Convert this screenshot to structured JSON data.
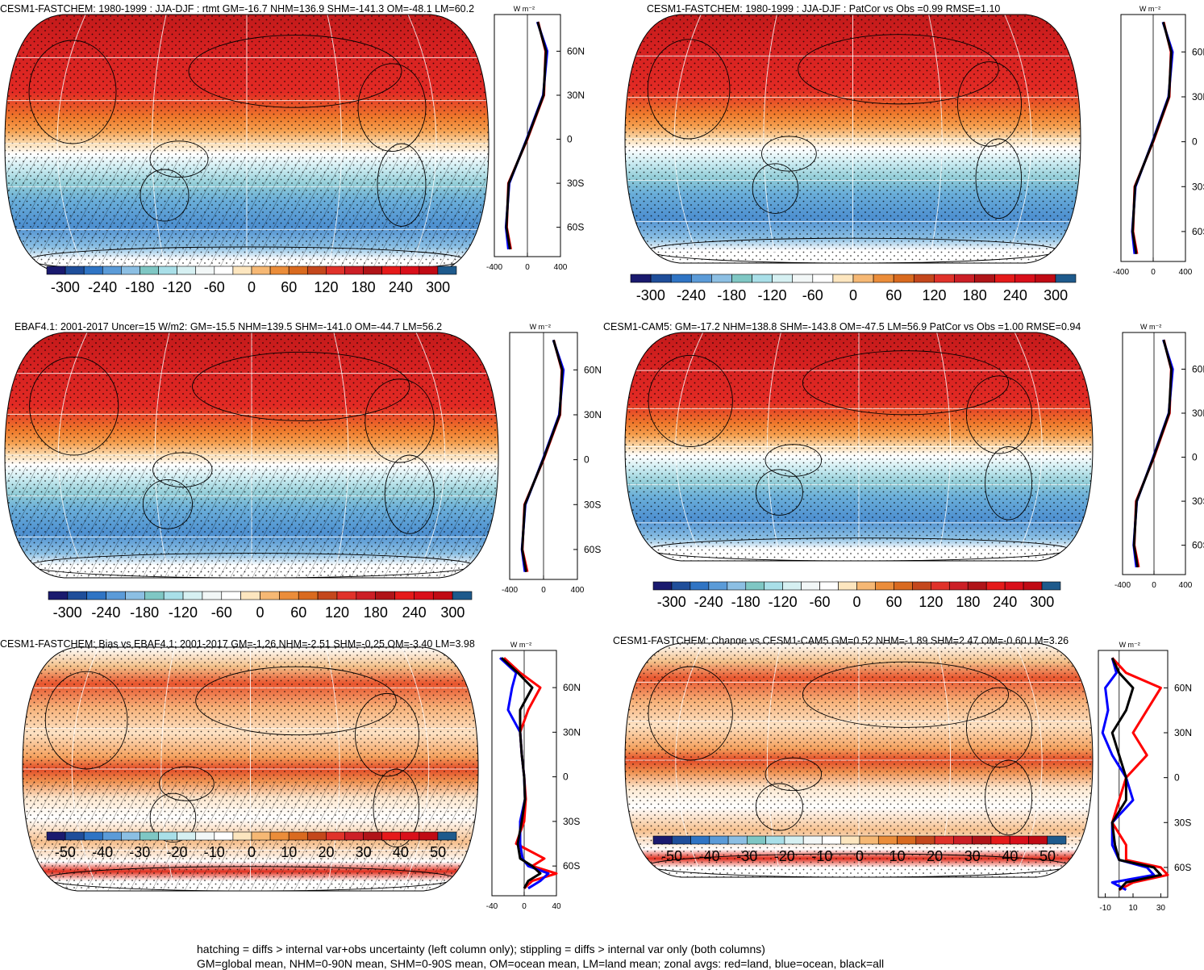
{
  "footnotes": [
    "hatching = diffs > internal var+obs uncertainty (left column only); stippling = diffs > internal var only (both columns)",
    "GM=global mean, NHM=0-90N mean, SHM=0-90S mean, OM=ocean mean, LM=land mean; zonal avgs: red=land, blue=ocean, black=all"
  ],
  "zonal_unit": "W m⁻²",
  "lat_ticks": [
    "60N",
    "30N",
    "0",
    "30S",
    "60S"
  ],
  "colors": {
    "land": "#ff0000",
    "ocean": "#0000ff",
    "all": "#000000",
    "abs_scale": [
      "#1a1a6e",
      "#1f4e9a",
      "#2f74c4",
      "#5b9bd8",
      "#8cbfe3",
      "#7fc7c4",
      "#a9dfe8",
      "#d6f0f2",
      "#f2f7f7",
      "#ffffff",
      "#fde6bf",
      "#f6b874",
      "#eb8d3a",
      "#d96a1f",
      "#c4471c",
      "#e0322a",
      "#cc1f26",
      "#b01418",
      "#e51a1a",
      "#d90f1a",
      "#c00a14",
      "#1e5a8c"
    ],
    "diff_scale": [
      "#1a1a6e",
      "#1f4e9a",
      "#2f74c4",
      "#5b9bd8",
      "#8cbfe3",
      "#7fc7c4",
      "#a9dfe8",
      "#d6f0f2",
      "#f2f7f7",
      "#ffffff",
      "#fde6bf",
      "#f6b874",
      "#eb8d3a",
      "#d96a1f",
      "#c4471c",
      "#e0322a",
      "#cc1f26",
      "#b01418",
      "#e51a1a",
      "#d90f1a",
      "#c00a14",
      "#1e5a8c"
    ]
  },
  "chart_data": [
    {
      "type": "heatmap",
      "title": "CESM1-FASTCHEM: 1980-1999 : JJA-DJF : rtmt GM=-16.7 NHM=136.9 SHM=-141.3 OM=-48.1 LM=60.2",
      "colorbar_labels": [
        "-300",
        "-240",
        "-180",
        "-120",
        "-60",
        "0",
        "60",
        "120",
        "180",
        "240",
        "300"
      ],
      "zonal_xlim": [
        -400,
        400
      ],
      "zonal_xticks": [
        "-400",
        "0",
        "400"
      ],
      "lat": [
        80,
        60,
        30,
        0,
        -30,
        -60,
        -75
      ],
      "series": [
        {
          "name": "land",
          "values": [
            130,
            220,
            200,
            0,
            -230,
            -250,
            -200
          ]
        },
        {
          "name": "ocean",
          "values": [
            120,
            240,
            190,
            -10,
            -220,
            -260,
            -230
          ]
        },
        {
          "name": "all",
          "values": [
            125,
            225,
            195,
            -5,
            -225,
            -255,
            -210
          ]
        }
      ]
    },
    {
      "type": "heatmap",
      "title": "CESM1-FASTCHEM: 1980-1999 : JJA-DJF : PatCor vs Obs =0.99 RMSE=1.10",
      "colorbar_labels": [
        "-300",
        "-240",
        "-180",
        "-120",
        "-60",
        "0",
        "60",
        "120",
        "180",
        "240",
        "300"
      ],
      "zonal_xlim": [
        -400,
        400
      ],
      "zonal_xticks": [
        "-400",
        "0",
        "400"
      ],
      "lat": [
        80,
        60,
        30,
        0,
        -30,
        -60,
        -75
      ],
      "series": [
        {
          "name": "land",
          "values": [
            130,
            220,
            200,
            0,
            -230,
            -250,
            -200
          ]
        },
        {
          "name": "ocean",
          "values": [
            120,
            240,
            190,
            -10,
            -220,
            -260,
            -230
          ]
        },
        {
          "name": "all",
          "values": [
            125,
            225,
            195,
            -5,
            -225,
            -255,
            -210
          ]
        }
      ]
    },
    {
      "type": "heatmap",
      "title": "EBAF4.1: 2001-2017 Uncer=15 W/m2: GM=-15.5 NHM=139.5 SHM=-141.0 OM=-44.7 LM=56.2",
      "colorbar_labels": [
        "-300",
        "-240",
        "-180",
        "-120",
        "-60",
        "0",
        "60",
        "120",
        "180",
        "240",
        "300"
      ],
      "zonal_xlim": [
        -400,
        400
      ],
      "zonal_xticks": [
        "-400",
        "0",
        "400"
      ],
      "lat": [
        80,
        60,
        30,
        0,
        -30,
        -60,
        -75
      ],
      "series": [
        {
          "name": "land",
          "values": [
            120,
            215,
            195,
            0,
            -225,
            -250,
            -190
          ]
        },
        {
          "name": "ocean",
          "values": [
            115,
            235,
            185,
            -10,
            -215,
            -255,
            -220
          ]
        },
        {
          "name": "all",
          "values": [
            118,
            220,
            190,
            -5,
            -220,
            -252,
            -205
          ]
        }
      ]
    },
    {
      "type": "heatmap",
      "title": "CESM1-CAM5: GM=-17.2 NHM=138.8 SHM=-143.8 OM=-47.5 LM=56.9 PatCor vs Obs =1.00 RMSE=0.94",
      "colorbar_labels": [
        "-300",
        "-240",
        "-180",
        "-120",
        "-60",
        "0",
        "60",
        "120",
        "180",
        "240",
        "300"
      ],
      "zonal_xlim": [
        -400,
        400
      ],
      "zonal_xticks": [
        "-400",
        "0",
        "400"
      ],
      "lat": [
        80,
        60,
        30,
        0,
        -30,
        -60,
        -75
      ],
      "series": [
        {
          "name": "land",
          "values": [
            125,
            218,
            198,
            0,
            -228,
            -250,
            -195
          ]
        },
        {
          "name": "ocean",
          "values": [
            118,
            238,
            188,
            -10,
            -218,
            -258,
            -225
          ]
        },
        {
          "name": "all",
          "values": [
            122,
            222,
            192,
            -5,
            -222,
            -254,
            -208
          ]
        }
      ]
    },
    {
      "type": "heatmap",
      "title": "CESM1-FASTCHEM: Bias vs EBAF4.1: 2001-2017 GM=-1.26 NHM=-2.51 SHM=-0.25 OM=-3.40 LM=3.98",
      "colorbar_labels": [
        "-50",
        "-40",
        "-30",
        "-20",
        "-10",
        "0",
        "10",
        "20",
        "30",
        "40",
        "50"
      ],
      "zonal_xlim": [
        -40,
        40
      ],
      "zonal_xticks": [
        "-40",
        "0",
        "40"
      ],
      "lat": [
        80,
        70,
        60,
        45,
        30,
        15,
        0,
        -15,
        -30,
        -45,
        -55,
        -60,
        -65,
        -70,
        -75
      ],
      "series": [
        {
          "name": "land",
          "values": [
            -25,
            -5,
            20,
            5,
            -5,
            -3,
            0,
            2,
            0,
            -10,
            25,
            10,
            40,
            10,
            0
          ]
        },
        {
          "name": "ocean",
          "values": [
            -30,
            -10,
            -15,
            -20,
            -5,
            -3,
            0,
            1,
            -5,
            -5,
            -2,
            5,
            30,
            20,
            5
          ]
        },
        {
          "name": "all",
          "values": [
            -28,
            -8,
            10,
            -5,
            -5,
            -3,
            0,
            1,
            -3,
            -8,
            -5,
            10,
            20,
            5,
            0
          ]
        }
      ]
    },
    {
      "type": "heatmap",
      "title": "CESM1-FASTCHEM: Change vs CESM1-CAM5 GM=0.52 NHM=-1.89 SHM=2.47 OM=-0.60 LM=3.26",
      "colorbar_labels": [
        "-50",
        "-40",
        "-30",
        "-20",
        "-10",
        "0",
        "10",
        "20",
        "30",
        "40",
        "50"
      ],
      "zonal_xlim": [
        -15,
        35
      ],
      "zonal_xticks": [
        "-10",
        "10",
        "30"
      ],
      "lat": [
        80,
        70,
        60,
        45,
        30,
        15,
        0,
        -15,
        -30,
        -45,
        -55,
        -60,
        -65,
        -70,
        -75
      ],
      "series": [
        {
          "name": "land",
          "values": [
            -5,
            5,
            30,
            20,
            10,
            20,
            5,
            0,
            -5,
            5,
            5,
            30,
            35,
            10,
            0
          ]
        },
        {
          "name": "ocean",
          "values": [
            -5,
            -2,
            -10,
            -8,
            -12,
            -5,
            5,
            10,
            -5,
            -5,
            0,
            20,
            25,
            -5,
            5
          ]
        },
        {
          "name": "all",
          "values": [
            -5,
            0,
            10,
            5,
            -5,
            0,
            5,
            5,
            -5,
            -3,
            0,
            25,
            30,
            5,
            0
          ]
        }
      ]
    }
  ]
}
